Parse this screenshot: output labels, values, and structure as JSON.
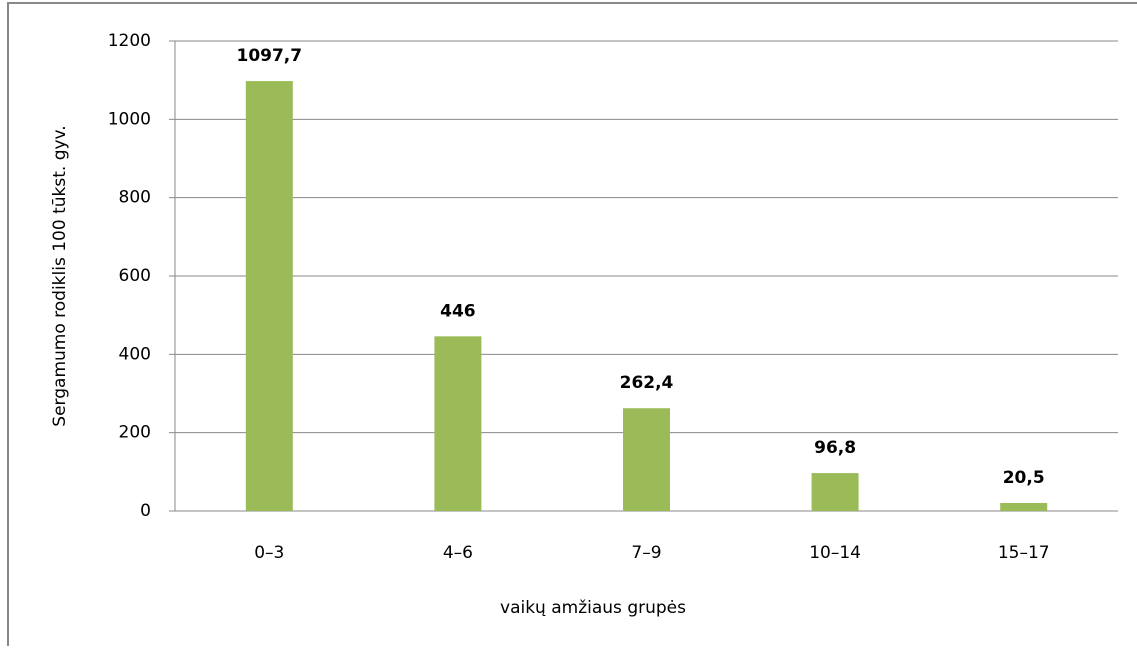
{
  "chart_data": {
    "type": "bar",
    "x_label": "vaikų amžiaus grupės",
    "y_label": "Sergamumo rodiklis 100 tūkst. gyv.",
    "categories": [
      "0–3",
      "4–6",
      "7–9",
      "10–14",
      "15–17"
    ],
    "values": [
      1097.7,
      446,
      262.4,
      96.8,
      20.5
    ],
    "value_labels": [
      "1097,7",
      "446",
      "262,4",
      "96,8",
      "20,5"
    ],
    "color": "#9bbb59",
    "ylim": [
      0,
      1200
    ],
    "yticks": [
      0,
      200,
      400,
      600,
      800,
      1000,
      1200
    ],
    "grid": true
  }
}
